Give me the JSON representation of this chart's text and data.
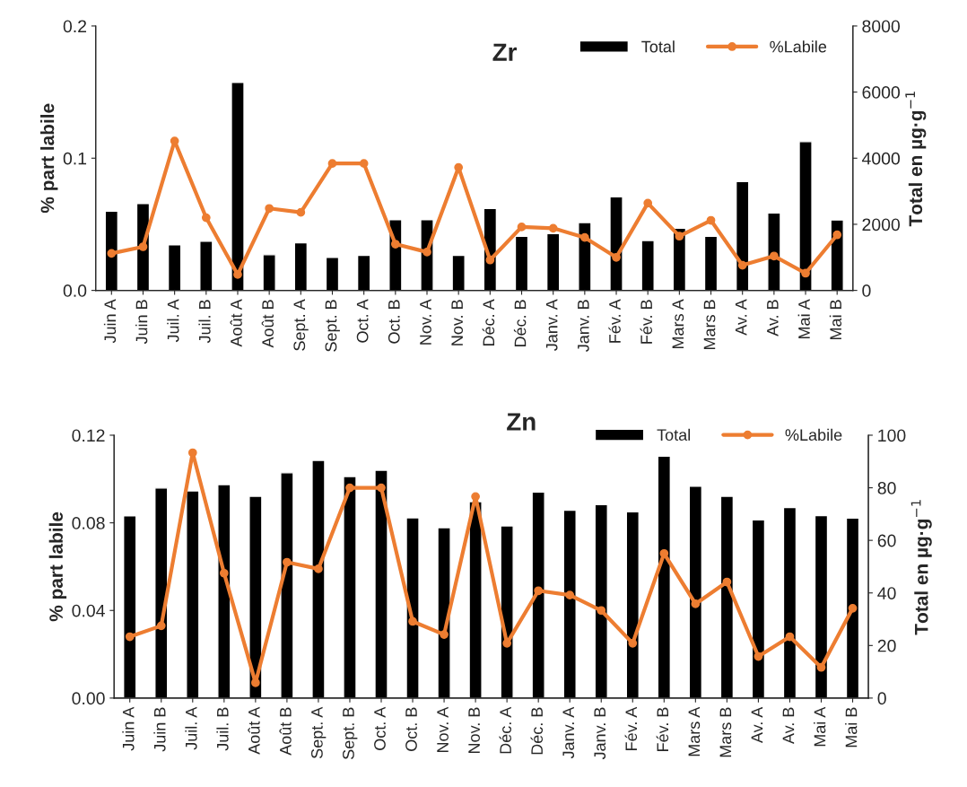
{
  "chart_data": [
    {
      "type": "bar",
      "title": "Zr",
      "ylabel": "% part labile",
      "y2label": "Total en µg·g$^{−1}$",
      "categories": [
        "Juin A",
        "Juin B",
        "Juil. A",
        "Juil. B",
        "Août A",
        "Août B",
        "Sept. A",
        "Sept. B",
        "Oct. A",
        "Oct. B",
        "Nov. A",
        "Nov. B",
        "Déc. A",
        "Déc. B",
        "Janv. A",
        "Janv. B",
        "Fév. A",
        "Fév. B",
        "Mars A",
        "Mars B",
        "Av. A",
        "Av. B",
        "Mai A",
        "Mai B"
      ],
      "series": [
        {
          "name": "Total",
          "axis": "y2",
          "color": "#000000",
          "values": [
            2400,
            2630,
            1380,
            1490,
            6290,
            1080,
            1440,
            1000,
            1060,
            2140,
            2140,
            1060,
            2480,
            1640,
            1720,
            2050,
            2830,
            1510,
            1880,
            1640,
            3290,
            2340,
            4500,
            2130
          ]
        },
        {
          "name": "%Labile",
          "type": "line",
          "axis": "y",
          "color": "#ed7d31",
          "marker": "circle",
          "values": [
            0.028,
            0.033,
            0.113,
            0.055,
            0.012,
            0.062,
            0.059,
            0.096,
            0.096,
            0.035,
            0.029,
            0.093,
            0.023,
            0.048,
            0.047,
            0.04,
            0.025,
            0.066,
            0.041,
            0.053,
            0.019,
            0.026,
            0.013,
            0.042
          ]
        }
      ],
      "ylim": [
        0,
        0.2
      ],
      "yticks": [
        {
          "value": 0,
          "label": "0.0"
        },
        0.1,
        0.2
      ],
      "y2lim": [
        0,
        8000
      ],
      "y2ticks": [
        0,
        2000,
        4000,
        6000,
        8000
      ],
      "legend": "top right"
    },
    {
      "type": "bar",
      "title": "Zn",
      "ylabel": "% part labile",
      "y2label": "Total en µg·g$^{−1}$",
      "categories": [
        "Juin A",
        "Juin B",
        "Juil. A",
        "Juil. B",
        "Août A",
        "Août B",
        "Sept. A",
        "Sept. B",
        "Oct. A",
        "Oct. B",
        "Nov. A",
        "Nov. B",
        "Déc. A",
        "Déc. B",
        "Janv. A",
        "Janv. B",
        "Fév. A",
        "Fév. B",
        "Mars A",
        "Mars B",
        "Av. A",
        "Av. B",
        "Mai A",
        "Mai B"
      ],
      "series": [
        {
          "name": "Total",
          "axis": "y2",
          "color": "#000000",
          "values": [
            69.3,
            79.9,
            78.8,
            81.2,
            76.8,
            85.7,
            90.4,
            84.3,
            86.7,
            68.6,
            64.8,
            74.7,
            65.5,
            78.4,
            71.5,
            73.6,
            70.9,
            92.0,
            80.6,
            76.8,
            67.8,
            72.5,
            69.4,
            68.5
          ]
        },
        {
          "name": "%Labile",
          "type": "line",
          "axis": "y",
          "color": "#ed7d31",
          "marker": "circle",
          "values": [
            0.028,
            0.033,
            0.112,
            0.057,
            0.007,
            0.062,
            0.059,
            0.096,
            0.096,
            0.035,
            0.029,
            0.092,
            0.025,
            0.049,
            0.047,
            0.04,
            0.025,
            0.066,
            0.043,
            0.053,
            0.019,
            0.028,
            0.014,
            0.041
          ]
        }
      ],
      "ylim": [
        0,
        0.12
      ],
      "yticks": [
        {
          "value": 0,
          "label": "0.00"
        },
        {
          "value": 0.04,
          "label": "0.04"
        },
        {
          "value": 0.08,
          "label": "0.08"
        },
        {
          "value": 0.12,
          "label": "0.12"
        }
      ],
      "y2lim": [
        0,
        100
      ],
      "y2ticks": [
        0,
        20,
        40,
        60,
        80,
        100
      ],
      "legend": "top right"
    }
  ]
}
